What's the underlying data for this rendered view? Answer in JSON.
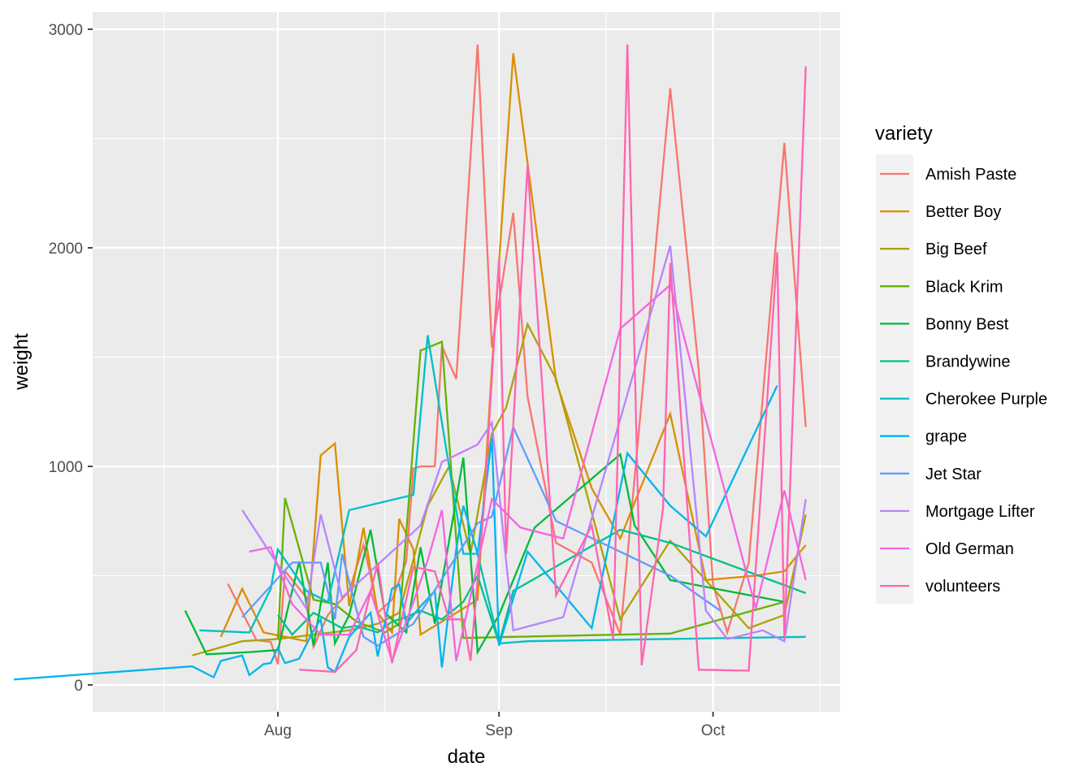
{
  "chart_data": {
    "type": "line",
    "title": "",
    "xlabel": "date",
    "ylabel": "weight",
    "x_ticks": [
      "Aug",
      "Sep",
      "Oct"
    ],
    "y_ticks": [
      "0",
      "1000",
      "2000",
      "3000"
    ],
    "ylim": [
      -120,
      3080
    ],
    "xlim": [
      "2020-06-21",
      "2020-10-24"
    ],
    "grid": true,
    "legend_title": "variety",
    "legend_position": "right",
    "series": [
      {
        "name": "Amish Paste",
        "color": "#F8766D",
        "points": [
          [
            "2020-07-25",
            463
          ],
          [
            "2020-07-29",
            204
          ],
          [
            "2020-07-31",
            197
          ],
          [
            "2020-08-01",
            95
          ],
          [
            "2020-08-02",
            522
          ],
          [
            "2020-08-05",
            400
          ],
          [
            "2020-08-06",
            175
          ],
          [
            "2020-08-08",
            320
          ],
          [
            "2020-08-11",
            430
          ],
          [
            "2020-08-13",
            640
          ],
          [
            "2020-08-14",
            500
          ],
          [
            "2020-08-15",
            330
          ],
          [
            "2020-08-17",
            390
          ],
          [
            "2020-08-19",
            565
          ],
          [
            "2020-08-20",
            990
          ],
          [
            "2020-08-21",
            1000
          ],
          [
            "2020-08-23",
            1000
          ],
          [
            "2020-08-24",
            1550
          ],
          [
            "2020-08-26",
            1400
          ],
          [
            "2020-08-27",
            1900
          ],
          [
            "2020-08-29",
            2930
          ],
          [
            "2020-08-31",
            1545
          ],
          [
            "2020-09-03",
            2160
          ],
          [
            "2020-09-05",
            1320
          ],
          [
            "2020-09-09",
            650
          ],
          [
            "2020-09-14",
            560
          ],
          [
            "2020-09-18",
            230
          ],
          [
            "2020-09-25",
            2730
          ],
          [
            "2020-09-29",
            1440
          ],
          [
            "2020-10-01",
            460
          ],
          [
            "2020-10-03",
            240
          ],
          [
            "2020-10-06",
            560
          ],
          [
            "2020-10-11",
            2480
          ],
          [
            "2020-10-14",
            1180
          ]
        ]
      },
      {
        "name": "Better Boy",
        "color": "#DB8E00",
        "points": [
          [
            "2020-07-24",
            220
          ],
          [
            "2020-07-27",
            440
          ],
          [
            "2020-07-30",
            240
          ],
          [
            "2020-08-02",
            220
          ],
          [
            "2020-08-05",
            200
          ],
          [
            "2020-08-07",
            1050
          ],
          [
            "2020-08-09",
            1105
          ],
          [
            "2020-08-11",
            360
          ],
          [
            "2020-08-13",
            720
          ],
          [
            "2020-08-15",
            330
          ],
          [
            "2020-08-17",
            240
          ],
          [
            "2020-08-18",
            760
          ],
          [
            "2020-08-20",
            620
          ],
          [
            "2020-08-21",
            230
          ],
          [
            "2020-08-27",
            350
          ],
          [
            "2020-08-29",
            390
          ],
          [
            "2020-08-31",
            1450
          ],
          [
            "2020-09-03",
            2890
          ],
          [
            "2020-09-09",
            1390
          ],
          [
            "2020-09-14",
            900
          ],
          [
            "2020-09-18",
            670
          ],
          [
            "2020-09-25",
            1240
          ],
          [
            "2020-09-30",
            480
          ],
          [
            "2020-10-07",
            500
          ],
          [
            "2020-10-11",
            520
          ],
          [
            "2020-10-14",
            640
          ]
        ]
      },
      {
        "name": "Big Beef",
        "color": "#AEA200",
        "points": [
          [
            "2020-07-20",
            135
          ],
          [
            "2020-07-27",
            200
          ],
          [
            "2020-08-01",
            210
          ],
          [
            "2020-08-06",
            230
          ],
          [
            "2020-08-11",
            250
          ],
          [
            "2020-08-15",
            280
          ],
          [
            "2020-08-18",
            330
          ],
          [
            "2020-08-22",
            820
          ],
          [
            "2020-08-25",
            1000
          ],
          [
            "2020-08-28",
            600
          ],
          [
            "2020-08-31",
            1150
          ],
          [
            "2020-09-02",
            1270
          ],
          [
            "2020-09-05",
            1650
          ],
          [
            "2020-09-09",
            1400
          ],
          [
            "2020-09-18",
            300
          ],
          [
            "2020-09-25",
            660
          ],
          [
            "2020-10-06",
            260
          ],
          [
            "2020-10-11",
            320
          ],
          [
            "2020-10-14",
            780
          ]
        ]
      },
      {
        "name": "Black Krim",
        "color": "#64B200",
        "points": [
          [
            "2020-08-01",
            210
          ],
          [
            "2020-08-02",
            855
          ],
          [
            "2020-08-06",
            390
          ],
          [
            "2020-08-09",
            370
          ],
          [
            "2020-08-12",
            290
          ],
          [
            "2020-08-16",
            240
          ],
          [
            "2020-08-18",
            280
          ],
          [
            "2020-08-21",
            1530
          ],
          [
            "2020-08-24",
            1570
          ],
          [
            "2020-08-27",
            215
          ],
          [
            "2020-09-03",
            220
          ],
          [
            "2020-09-10",
            225
          ],
          [
            "2020-09-25",
            235
          ],
          [
            "2020-10-01",
            290
          ],
          [
            "2020-10-11",
            380
          ]
        ]
      },
      {
        "name": "Bonny Best",
        "color": "#00BA38",
        "points": [
          [
            "2020-07-19",
            340
          ],
          [
            "2020-07-22",
            140
          ],
          [
            "2020-07-28",
            150
          ],
          [
            "2020-08-01",
            160
          ],
          [
            "2020-08-04",
            565
          ],
          [
            "2020-08-06",
            180
          ],
          [
            "2020-08-08",
            560
          ],
          [
            "2020-08-09",
            190
          ],
          [
            "2020-08-11",
            320
          ],
          [
            "2020-08-14",
            710
          ],
          [
            "2020-08-16",
            330
          ],
          [
            "2020-08-19",
            240
          ],
          [
            "2020-08-21",
            630
          ],
          [
            "2020-08-23",
            280
          ],
          [
            "2020-08-27",
            1040
          ],
          [
            "2020-08-29",
            150
          ],
          [
            "2020-09-01",
            320
          ],
          [
            "2020-09-06",
            720
          ],
          [
            "2020-09-18",
            1055
          ],
          [
            "2020-09-20",
            730
          ],
          [
            "2020-09-25",
            480
          ],
          [
            "2020-10-11",
            380
          ]
        ]
      },
      {
        "name": "Brandywine",
        "color": "#00C08B",
        "points": [
          [
            "2020-08-01",
            320
          ],
          [
            "2020-08-03",
            230
          ],
          [
            "2020-08-06",
            330
          ],
          [
            "2020-08-10",
            260
          ],
          [
            "2020-08-12",
            270
          ],
          [
            "2020-08-15",
            240
          ],
          [
            "2020-08-17",
            290
          ],
          [
            "2020-08-19",
            310
          ],
          [
            "2020-08-21",
            340
          ],
          [
            "2020-08-24",
            300
          ],
          [
            "2020-08-27",
            380
          ],
          [
            "2020-08-29",
            500
          ],
          [
            "2020-09-01",
            190
          ],
          [
            "2020-09-03",
            430
          ],
          [
            "2020-09-18",
            710
          ],
          [
            "2020-09-25",
            650
          ],
          [
            "2020-10-14",
            420
          ]
        ]
      },
      {
        "name": "Cherokee Purple",
        "color": "#00BFC4",
        "points": [
          [
            "2020-07-21",
            250
          ],
          [
            "2020-07-28",
            240
          ],
          [
            "2020-07-31",
            440
          ],
          [
            "2020-08-01",
            620
          ],
          [
            "2020-08-05",
            430
          ],
          [
            "2020-08-08",
            380
          ],
          [
            "2020-08-11",
            800
          ],
          [
            "2020-08-20",
            870
          ],
          [
            "2020-08-22",
            1600
          ],
          [
            "2020-08-25",
            1000
          ],
          [
            "2020-08-27",
            600
          ],
          [
            "2020-08-29",
            600
          ],
          [
            "2020-09-01",
            190
          ],
          [
            "2020-09-05",
            200
          ],
          [
            "2020-10-14",
            220
          ]
        ]
      },
      {
        "name": "grape",
        "color": "#00B4F0",
        "points": [
          [
            "2020-06-25",
            25
          ],
          [
            "2020-07-20",
            85
          ],
          [
            "2020-07-23",
            35
          ],
          [
            "2020-07-24",
            110
          ],
          [
            "2020-07-27",
            135
          ],
          [
            "2020-07-28",
            45
          ],
          [
            "2020-07-30",
            95
          ],
          [
            "2020-07-31",
            100
          ],
          [
            "2020-08-01",
            170
          ],
          [
            "2020-08-02",
            100
          ],
          [
            "2020-08-04",
            120
          ],
          [
            "2020-08-06",
            250
          ],
          [
            "2020-08-07",
            300
          ],
          [
            "2020-08-08",
            80
          ],
          [
            "2020-08-09",
            60
          ],
          [
            "2020-08-11",
            220
          ],
          [
            "2020-08-14",
            330
          ],
          [
            "2020-08-15",
            130
          ],
          [
            "2020-08-17",
            440
          ],
          [
            "2020-08-18",
            460
          ],
          [
            "2020-08-19",
            280
          ],
          [
            "2020-08-21",
            360
          ],
          [
            "2020-08-23",
            430
          ],
          [
            "2020-08-24",
            80
          ],
          [
            "2020-08-26",
            620
          ],
          [
            "2020-08-27",
            820
          ],
          [
            "2020-08-29",
            600
          ],
          [
            "2020-08-31",
            1130
          ],
          [
            "2020-09-01",
            180
          ],
          [
            "2020-09-05",
            610
          ],
          [
            "2020-09-14",
            260
          ],
          [
            "2020-09-19",
            1060
          ],
          [
            "2020-09-25",
            820
          ],
          [
            "2020-09-30",
            680
          ],
          [
            "2020-10-10",
            1370
          ]
        ]
      },
      {
        "name": "Jet Star",
        "color": "#619CFF",
        "points": [
          [
            "2020-07-27",
            310
          ],
          [
            "2020-08-03",
            560
          ],
          [
            "2020-08-07",
            560
          ],
          [
            "2020-08-09",
            300
          ],
          [
            "2020-08-10",
            600
          ],
          [
            "2020-08-13",
            220
          ],
          [
            "2020-08-15",
            180
          ],
          [
            "2020-08-20",
            280
          ],
          [
            "2020-08-29",
            740
          ],
          [
            "2020-08-31",
            770
          ],
          [
            "2020-09-03",
            1180
          ],
          [
            "2020-09-09",
            750
          ],
          [
            "2020-09-25",
            500
          ],
          [
            "2020-10-02",
            340
          ]
        ]
      },
      {
        "name": "Mortgage Lifter",
        "color": "#B983FF",
        "points": [
          [
            "2020-07-27",
            800
          ],
          [
            "2020-08-05",
            350
          ],
          [
            "2020-08-07",
            780
          ],
          [
            "2020-08-10",
            400
          ],
          [
            "2020-08-21",
            730
          ],
          [
            "2020-08-24",
            1020
          ],
          [
            "2020-08-29",
            1100
          ],
          [
            "2020-08-31",
            1200
          ],
          [
            "2020-09-03",
            250
          ],
          [
            "2020-09-10",
            310
          ],
          [
            "2020-09-25",
            2010
          ],
          [
            "2020-09-30",
            340
          ],
          [
            "2020-10-03",
            210
          ],
          [
            "2020-10-08",
            250
          ],
          [
            "2020-10-11",
            200
          ],
          [
            "2020-10-14",
            850
          ]
        ]
      },
      {
        "name": "Old German",
        "color": "#F564E3",
        "points": [
          [
            "2020-07-28",
            610
          ],
          [
            "2020-07-31",
            630
          ],
          [
            "2020-08-03",
            370
          ],
          [
            "2020-08-07",
            230
          ],
          [
            "2020-08-11",
            230
          ],
          [
            "2020-08-14",
            430
          ],
          [
            "2020-08-17",
            110
          ],
          [
            "2020-08-20",
            380
          ],
          [
            "2020-08-22",
            570
          ],
          [
            "2020-08-24",
            800
          ],
          [
            "2020-08-26",
            110
          ],
          [
            "2020-08-31",
            850
          ],
          [
            "2020-09-04",
            720
          ],
          [
            "2020-09-10",
            670
          ],
          [
            "2020-09-18",
            1630
          ],
          [
            "2020-09-25",
            1830
          ],
          [
            "2020-10-07",
            350
          ],
          [
            "2020-10-11",
            890
          ],
          [
            "2020-10-14",
            480
          ]
        ]
      },
      {
        "name": "volunteers",
        "color": "#FF64B0",
        "points": [
          [
            "2020-08-04",
            70
          ],
          [
            "2020-08-09",
            60
          ],
          [
            "2020-08-12",
            160
          ],
          [
            "2020-08-15",
            560
          ],
          [
            "2020-08-17",
            100
          ],
          [
            "2020-08-20",
            540
          ],
          [
            "2020-08-23",
            520
          ],
          [
            "2020-08-25",
            300
          ],
          [
            "2020-08-27",
            300
          ],
          [
            "2020-08-28",
            110
          ],
          [
            "2020-08-30",
            860
          ],
          [
            "2020-09-01",
            1950
          ],
          [
            "2020-09-02",
            600
          ],
          [
            "2020-09-05",
            2380
          ],
          [
            "2020-09-09",
            410
          ],
          [
            "2020-09-14",
            730
          ],
          [
            "2020-09-17",
            210
          ],
          [
            "2020-09-19",
            2930
          ],
          [
            "2020-09-21",
            90
          ],
          [
            "2020-09-24",
            810
          ],
          [
            "2020-09-25",
            1930
          ],
          [
            "2020-09-29",
            70
          ],
          [
            "2020-10-06",
            65
          ],
          [
            "2020-10-10",
            1980
          ],
          [
            "2020-10-11",
            210
          ],
          [
            "2020-10-14",
            2830
          ]
        ]
      }
    ]
  }
}
